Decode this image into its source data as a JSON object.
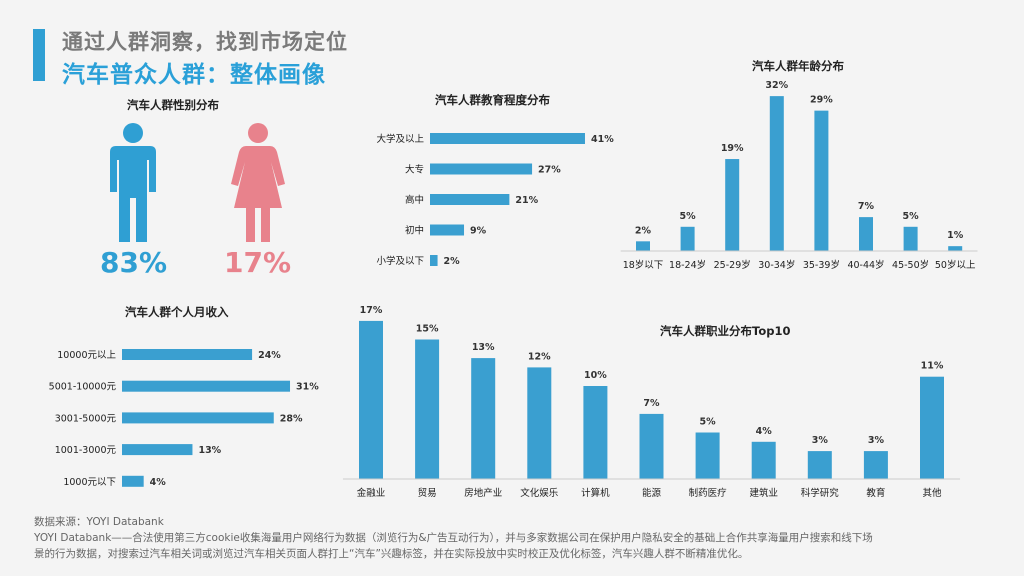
{
  "header": {
    "subtitle": "通过人群洞察，找到市场定位",
    "title": "汽车普众人群：整体画像"
  },
  "colors": {
    "bar": "#3a9fd0",
    "male": "#2f9fd3",
    "female": "#e8828c",
    "title_accent": "#2aa0d8"
  },
  "gender": {
    "title": "汽车人群性别分布",
    "male_pct": "83%",
    "female_pct": "17%",
    "male_icon": "male-person-icon",
    "female_icon": "female-person-icon"
  },
  "chart_data": [
    {
      "type": "bar",
      "orientation": "horizontal",
      "title": "汽车人群教育程度分布",
      "categories": [
        "大学及以上",
        "大专",
        "高中",
        "初中",
        "小学及以下"
      ],
      "values": [
        41,
        27,
        21,
        9,
        2
      ],
      "labels": [
        "41%",
        "27%",
        "21%",
        "9%",
        "2%"
      ]
    },
    {
      "type": "bar",
      "orientation": "vertical",
      "title": "汽车人群年龄分布",
      "categories": [
        "18岁以下",
        "18-24岁",
        "25-29岁",
        "30-34岁",
        "35-39岁",
        "40-44岁",
        "45-50岁",
        "50岁以上"
      ],
      "values": [
        2,
        5,
        19,
        32,
        29,
        7,
        5,
        1
      ],
      "labels": [
        "2%",
        "5%",
        "19%",
        "32%",
        "29%",
        "7%",
        "5%",
        "1%"
      ]
    },
    {
      "type": "bar",
      "orientation": "horizontal",
      "title": "汽车人群个人月收入",
      "categories": [
        "10000元以上",
        "5001-10000元",
        "3001-5000元",
        "1001-3000元",
        "1000元以下"
      ],
      "values": [
        24,
        31,
        28,
        13,
        4
      ],
      "labels": [
        "24%",
        "31%",
        "28%",
        "13%",
        "4%"
      ]
    },
    {
      "type": "bar",
      "orientation": "vertical",
      "title": "汽车人群职业分布Top10",
      "categories": [
        "金融业",
        "贸易",
        "房地产业",
        "文化娱乐",
        "计算机",
        "能源",
        "制药医疗",
        "建筑业",
        "科学研究",
        "教育",
        "其他"
      ],
      "values": [
        17,
        15,
        13,
        12,
        10,
        7,
        5,
        4,
        3,
        3,
        11
      ],
      "labels": [
        "17%",
        "15%",
        "13%",
        "12%",
        "10%",
        "7%",
        "5%",
        "4%",
        "3%",
        "3%",
        "11%"
      ]
    }
  ],
  "footer": {
    "source": "数据来源：YOYI Databank",
    "line1": "YOYI Databank——合法使用第三方cookie收集海量用户网络行为数据（浏览行为&广告互动行为），并与多家数据公司在保护用户隐私安全的基础上合作共享海量用户搜索和线下场",
    "line2": "景的行为数据，对搜索过汽车相关词或浏览过汽车相关页面人群打上“汽车”兴趣标签，并在实际投放中实时校正及优化标签，汽车兴趣人群不断精准优化。"
  }
}
